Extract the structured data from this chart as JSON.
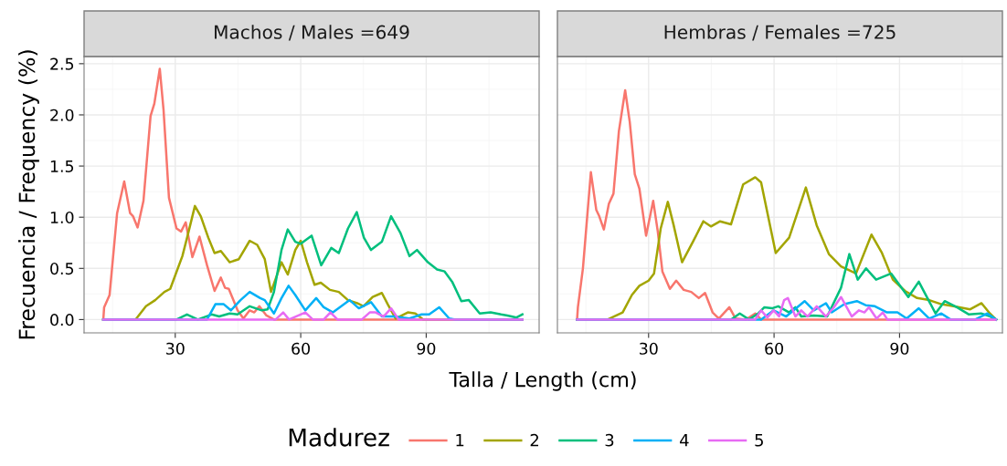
{
  "chart_data": [
    {
      "type": "line",
      "title": "Machos / Males =649",
      "ylabel": "Frecuencia / Frequency (%)",
      "xlabel": "Talla / Length (cm)",
      "legend_title": "Madurez",
      "legend": "bottom",
      "grid": true,
      "xlim": [
        8.2,
        117
      ],
      "xticks": [
        30,
        60,
        90
      ],
      "ylim": [
        -0.13,
        2.57
      ],
      "yticks": [
        {
          "value": 0,
          "label": "0.0"
        },
        {
          "value": 0.5,
          "label": "0.5"
        },
        {
          "value": 1,
          "label": "1.0"
        },
        {
          "value": 1.5,
          "label": "1.5"
        },
        {
          "value": 2,
          "label": "2.0"
        },
        {
          "value": 2.5,
          "label": "2.5"
        }
      ],
      "series": [
        {
          "name": "1",
          "color": "#f8766d",
          "x": [
            12.8,
            13.0,
            14.3,
            16.1,
            17.8,
            19.2,
            19.9,
            21.0,
            22.4,
            24.1,
            25.0,
            26.3,
            27.2,
            28.5,
            30.3,
            31.4,
            32.5,
            33.2,
            34.1,
            35.8,
            37.6,
            39.4,
            40.9,
            41.9,
            42.8,
            44.9,
            46.3,
            47.8,
            48.9,
            50.1,
            51.8,
            53.6,
            113
          ],
          "values": [
            0,
            0.12,
            0.24,
            1.04,
            1.35,
            1.04,
            1.01,
            0.9,
            1.16,
            1.99,
            2.11,
            2.45,
            2.05,
            1.19,
            0.89,
            0.86,
            0.95,
            0.8,
            0.61,
            0.81,
            0.53,
            0.28,
            0.41,
            0.31,
            0.3,
            0.09,
            0.01,
            0.09,
            0.07,
            0.13,
            0.04,
            0,
            0
          ]
        },
        {
          "name": "2",
          "color": "#a3a500",
          "x": [
            12.8,
            20.5,
            23.0,
            25.2,
            27.4,
            28.8,
            31.7,
            33.2,
            34.7,
            36.1,
            37.9,
            39.4,
            40.9,
            43.0,
            45.2,
            47.8,
            49.6,
            51.4,
            52.9,
            55.4,
            56.9,
            58.7,
            60.0,
            61.5,
            63.3,
            64.8,
            67.0,
            69.1,
            71.3,
            73.5,
            75.0,
            77.2,
            79.4,
            80.8,
            82.7,
            85.6,
            87.4,
            89.3,
            113
          ],
          "values": [
            0,
            0,
            0.13,
            0.19,
            0.27,
            0.3,
            0.62,
            0.86,
            1.11,
            1.01,
            0.8,
            0.65,
            0.67,
            0.56,
            0.59,
            0.77,
            0.73,
            0.59,
            0.27,
            0.56,
            0.44,
            0.68,
            0.77,
            0.56,
            0.34,
            0.36,
            0.29,
            0.27,
            0.19,
            0.16,
            0.13,
            0.22,
            0.26,
            0.15,
            0.01,
            0.07,
            0.06,
            0,
            0
          ]
        },
        {
          "name": "3",
          "color": "#00bf7d",
          "x": [
            12.8,
            30.3,
            32.8,
            35.4,
            38.7,
            40.5,
            43.0,
            44.9,
            47.8,
            50.7,
            52.1,
            53.6,
            55.4,
            56.9,
            58.7,
            60.0,
            62.6,
            64.9,
            67.3,
            69.1,
            71.3,
            73.4,
            75.1,
            76.8,
            79.4,
            81.6,
            83.8,
            86.0,
            87.8,
            90.4,
            92.6,
            94.4,
            96.2,
            98.4,
            100.2,
            102.8,
            105.4,
            107.9,
            109.4,
            111.6,
            113.0
          ],
          "values": [
            0,
            0,
            0.05,
            0,
            0.05,
            0.03,
            0.06,
            0.05,
            0.13,
            0.09,
            0.1,
            0.27,
            0.68,
            0.88,
            0.76,
            0.74,
            0.82,
            0.53,
            0.7,
            0.65,
            0.89,
            1.05,
            0.8,
            0.68,
            0.76,
            1.01,
            0.85,
            0.62,
            0.68,
            0.56,
            0.49,
            0.47,
            0.37,
            0.18,
            0.19,
            0.06,
            0.07,
            0.05,
            0.04,
            0.02,
            0.05
          ]
        },
        {
          "name": "4",
          "color": "#00b0f6",
          "x": [
            12.8,
            37.6,
            39.6,
            41.6,
            43.3,
            45.6,
            47.8,
            50.3,
            51.4,
            53.6,
            55.4,
            57.1,
            58.7,
            61.1,
            63.7,
            65.5,
            67.7,
            71.7,
            73.9,
            76.8,
            79.4,
            82.3,
            86.0,
            88.9,
            90.7,
            93.1,
            95.5,
            97.0,
            113
          ],
          "values": [
            0,
            0,
            0.15,
            0.15,
            0.09,
            0.19,
            0.27,
            0.21,
            0.19,
            0.06,
            0.21,
            0.33,
            0.24,
            0.09,
            0.21,
            0.12,
            0.07,
            0.19,
            0.11,
            0.17,
            0.03,
            0.03,
            0.01,
            0.05,
            0.05,
            0.12,
            0.01,
            0,
            0
          ]
        },
        {
          "name": "5",
          "color": "#e76bf3",
          "x": [
            12.8,
            54.0,
            55.8,
            57.2,
            61.1,
            62.9,
            65.5,
            67.1,
            68.8,
            74.6,
            76.5,
            77.9,
            79.8,
            81.6,
            83.4,
            113
          ],
          "values": [
            0,
            0,
            0.07,
            0,
            0.07,
            0,
            0,
            0.07,
            0,
            0,
            0.07,
            0.07,
            0.03,
            0.11,
            0,
            0
          ]
        }
      ]
    },
    {
      "type": "line",
      "title": "Hembras / Females =725",
      "grid": true,
      "tick_labels": "x",
      "xlim": [
        8.2,
        114.6
      ],
      "xticks": [
        30,
        60,
        90
      ],
      "ylim": [
        -0.13,
        2.57
      ],
      "yticks": [
        0,
        0.5,
        1,
        1.5,
        2,
        2.5
      ],
      "series": [
        {
          "name": "1",
          "color": "#f8766d",
          "x": [
            12.9,
            13.1,
            14.3,
            16.2,
            17.5,
            18.2,
            19.3,
            20.5,
            21.6,
            22.9,
            24.4,
            25.5,
            26.7,
            27.8,
            29.4,
            31.1,
            32.2,
            33.3,
            35.1,
            36.6,
            38.4,
            40.2,
            42.0,
            43.5,
            45.3,
            46.8,
            49.3,
            50.8,
            53.3,
            55.5,
            56.9,
            113
          ],
          "values": [
            0,
            0.12,
            0.5,
            1.44,
            1.07,
            1.01,
            0.88,
            1.13,
            1.23,
            1.84,
            2.24,
            1.93,
            1.42,
            1.28,
            0.82,
            1.16,
            0.86,
            0.47,
            0.3,
            0.38,
            0.29,
            0.27,
            0.21,
            0.26,
            0.07,
            0.01,
            0.12,
            0.01,
            0,
            0.06,
            0,
            0
          ]
        },
        {
          "name": "2",
          "color": "#a3a500",
          "x": [
            12.9,
            20.2,
            23.8,
            26.0,
            27.8,
            30.0,
            31.3,
            32.9,
            34.6,
            36.0,
            38.0,
            40.6,
            43.1,
            44.9,
            47.1,
            49.7,
            52.6,
            55.5,
            56.9,
            60.4,
            63.6,
            67.6,
            70.2,
            73.1,
            76.0,
            79.6,
            83.3,
            85.8,
            88.4,
            91.3,
            94.2,
            97.1,
            100.0,
            102.9,
            106.9,
            109.6,
            111.6,
            113.1
          ],
          "values": [
            0,
            0,
            0.07,
            0.24,
            0.33,
            0.38,
            0.45,
            0.89,
            1.15,
            0.92,
            0.56,
            0.76,
            0.96,
            0.91,
            0.96,
            0.93,
            1.32,
            1.39,
            1.34,
            0.65,
            0.8,
            1.29,
            0.92,
            0.64,
            0.52,
            0.45,
            0.83,
            0.65,
            0.39,
            0.28,
            0.21,
            0.19,
            0.15,
            0.13,
            0.1,
            0.16,
            0.06,
            0
          ]
        },
        {
          "name": "3",
          "color": "#00bf7d",
          "x": [
            12.9,
            49.7,
            51.8,
            54.0,
            56.2,
            57.7,
            59.5,
            61.0,
            63.6,
            65.1,
            66.5,
            69.5,
            72.7,
            76.0,
            78.0,
            80.0,
            82.0,
            84.4,
            88.0,
            92.1,
            94.6,
            98.6,
            100.8,
            103.7,
            106.6,
            109.5,
            111.7,
            113.1
          ],
          "values": [
            0,
            0,
            0.06,
            0,
            0.06,
            0.12,
            0.11,
            0.13,
            0.07,
            0.12,
            0.03,
            0.04,
            0.03,
            0.31,
            0.64,
            0.39,
            0.5,
            0.39,
            0.45,
            0.22,
            0.37,
            0.06,
            0.18,
            0.12,
            0.05,
            0.06,
            0.03,
            0
          ]
        },
        {
          "name": "4",
          "color": "#00b0f6",
          "x": [
            12.9,
            56.9,
            59.9,
            62.9,
            67.3,
            69.5,
            72.4,
            73.8,
            76.8,
            79.8,
            81.9,
            84.1,
            87.0,
            89.5,
            91.7,
            94.6,
            97.1,
            100.0,
            102.2,
            108.1,
            111.0,
            113.1
          ],
          "values": [
            0,
            0,
            0.09,
            0.03,
            0.18,
            0.09,
            0.16,
            0.07,
            0.15,
            0.18,
            0.14,
            0.13,
            0.07,
            0.07,
            0.01,
            0.11,
            0.01,
            0.06,
            0,
            0,
            0.06,
            0
          ]
        },
        {
          "name": "5",
          "color": "#e76bf3",
          "x": [
            12.9,
            55.5,
            56.9,
            58.4,
            59.9,
            61.2,
            62.4,
            63.3,
            65.1,
            66.5,
            68.0,
            70.2,
            72.4,
            74.3,
            76.0,
            78.6,
            80.3,
            81.6,
            82.7,
            84.5,
            86.0,
            87.1,
            113
          ],
          "values": [
            0,
            0,
            0.09,
            0.02,
            0.09,
            0.03,
            0.19,
            0.21,
            0.03,
            0.09,
            0.03,
            0.13,
            0.03,
            0.12,
            0.22,
            0.03,
            0.09,
            0.07,
            0.12,
            0.01,
            0.07,
            0,
            0
          ]
        }
      ]
    }
  ]
}
